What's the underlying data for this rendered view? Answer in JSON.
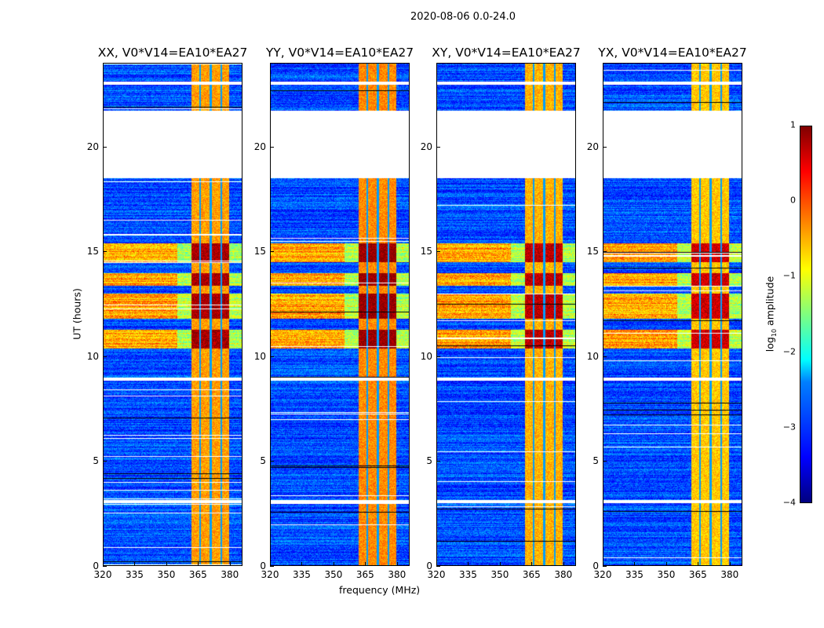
{
  "chart_data": {
    "type": "heatmap",
    "title": "2020-08-06 0.0-24.0",
    "xlabel": "frequency (MHz)",
    "ylabel": "UT (hours)",
    "xlim": [
      320,
      386
    ],
    "ylim": [
      0,
      24
    ],
    "xticks": [
      "320",
      "335",
      "350",
      "365",
      "380"
    ],
    "yticks": [
      "0",
      "5",
      "10",
      "15",
      "20"
    ],
    "panels": [
      {
        "title": "XX, V0*V14=EA10*EA27",
        "band_level": -0.4
      },
      {
        "title": "YY, V0*V14=EA10*EA27",
        "band_level": -0.3
      },
      {
        "title": "XY, V0*V14=EA10*EA27",
        "band_level": -0.5
      },
      {
        "title": "YX, V0*V14=EA10*EA27",
        "band_level": -0.6
      }
    ],
    "colorbar": {
      "label": "log10 amplitude",
      "label_base": "log",
      "label_sub": "10",
      "label_rest": " amplitude",
      "range": [
        -4,
        1
      ],
      "ticks": [
        "−4",
        "−3",
        "−2",
        "−1",
        "0",
        "1"
      ],
      "colormap": "jet"
    },
    "features": {
      "background_level": -3.0,
      "strong_band_MHz": [
        362,
        380
      ],
      "band_notch_MHz": [
        366,
        371,
        376
      ],
      "flagged_hours": [
        [
          18.55,
          21.75
        ],
        [
          8.85,
          9.0
        ],
        [
          3.0,
          3.15
        ],
        [
          23.0,
          23.15
        ]
      ],
      "rfi_hours": [
        [
          10.4,
          11.3
        ],
        [
          11.8,
          13.0
        ],
        [
          14.5,
          15.4
        ],
        [
          13.4,
          14.0
        ]
      ]
    }
  }
}
